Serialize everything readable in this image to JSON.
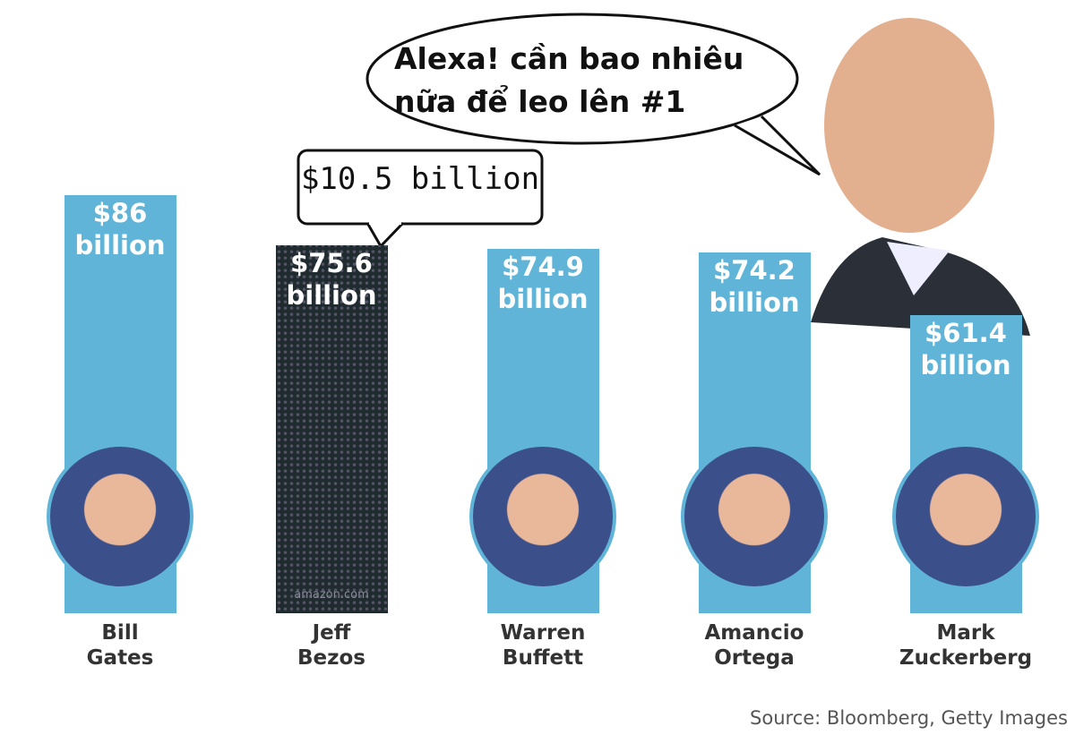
{
  "chart_data": {
    "type": "bar",
    "categories": [
      "Bill Gates",
      "Jeff Bezos",
      "Warren Buffett",
      "Amancio Ortega",
      "Mark Zuckerberg"
    ],
    "values": [
      86,
      75.6,
      74.9,
      74.2,
      61.4
    ],
    "value_labels": [
      "$86 billion",
      "$75.6 billion",
      "$74.9 billion",
      "$74.2 billion",
      "$61.4 billion"
    ],
    "colors": [
      "#5fb4d8",
      "#1f2b2f",
      "#5fb4d8",
      "#5fb4d8",
      "#5fb4d8"
    ],
    "annotations": {
      "speech": "Alexa! cần bao nhiêu nữa để leo lên #1",
      "callout": "$10.5 billion",
      "logo": "amazon.com"
    },
    "source": "Source: Bloomberg, Getty Images"
  }
}
